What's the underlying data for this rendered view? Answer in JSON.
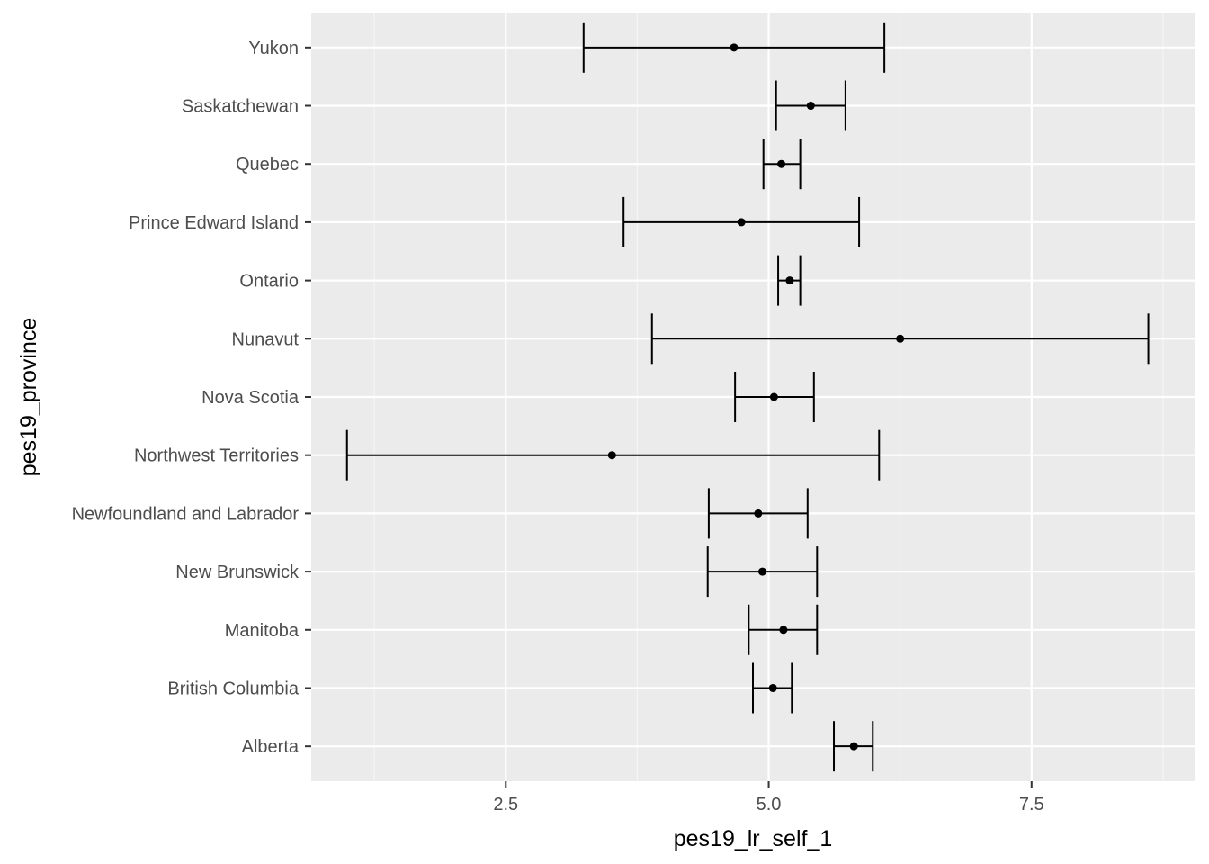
{
  "chart_data": {
    "type": "errorbar",
    "xlabel": "pes19_lr_self_1",
    "ylabel": "pes19_province",
    "xlim": [
      0.65,
      9.05
    ],
    "x_ticks": [
      2.5,
      5.0,
      7.5
    ],
    "x_tick_labels": [
      "2.5",
      "5.0",
      "7.5"
    ],
    "categories": [
      "Alberta",
      "British Columbia",
      "Manitoba",
      "New Brunswick",
      "Newfoundland and Labrador",
      "Northwest Territories",
      "Nova Scotia",
      "Nunavut",
      "Ontario",
      "Prince Edward Island",
      "Quebec",
      "Saskatchewan",
      "Yukon"
    ],
    "mean": [
      5.81,
      5.04,
      5.14,
      4.94,
      4.9,
      3.51,
      5.05,
      6.25,
      5.2,
      4.74,
      5.12,
      5.4,
      4.67
    ],
    "lower": [
      5.62,
      4.85,
      4.81,
      4.42,
      4.43,
      0.99,
      4.68,
      3.89,
      5.09,
      3.62,
      4.95,
      5.07,
      3.24
    ],
    "upper": [
      5.99,
      5.22,
      5.46,
      5.46,
      5.37,
      6.05,
      5.43,
      8.61,
      5.3,
      5.86,
      5.3,
      5.73,
      6.1
    ],
    "grid": true,
    "colors": {
      "panel": "#ebebeb",
      "grid_major": "#ffffff",
      "grid_minor": "#f5f5f5",
      "marks": "#000000"
    }
  }
}
